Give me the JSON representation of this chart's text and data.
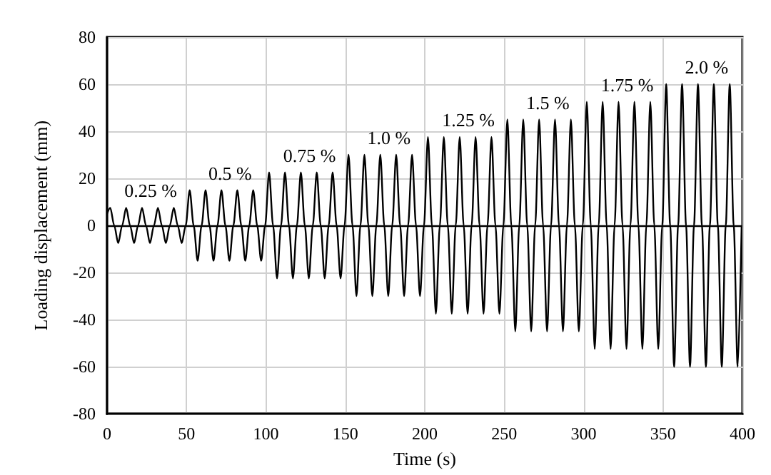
{
  "chart_data": {
    "type": "line",
    "xlabel": "Time (s)",
    "ylabel": "Loading displacement (mm)",
    "x": [
      0,
      2,
      4.5,
      7,
      9.5,
      12,
      14.5,
      17,
      19.5,
      22,
      24.5,
      27,
      29.5,
      32,
      34.5,
      37,
      39.5,
      42,
      44.5,
      47,
      49.5,
      52,
      54.5,
      57,
      59.5,
      62,
      64.5,
      67,
      69.5,
      72,
      74.5,
      77,
      79.5,
      82,
      84.5,
      87,
      89.5,
      92,
      94.5,
      97,
      99.5,
      102,
      104.5,
      107,
      109.5,
      112,
      114.5,
      117,
      119.5,
      122,
      124.5,
      127,
      129.5,
      132,
      134.5,
      137,
      139.5,
      142,
      144.5,
      147,
      149.5,
      152,
      154.5,
      157,
      159.5,
      162,
      164.5,
      167,
      169.5,
      172,
      174.5,
      177,
      179.5,
      182,
      184.5,
      187,
      189.5,
      192,
      194.5,
      197,
      199.5,
      202,
      204.5,
      207,
      209.5,
      212,
      214.5,
      217,
      219.5,
      222,
      224.5,
      227,
      229.5,
      232,
      234.5,
      237,
      239.5,
      242,
      244.5,
      247,
      249.5,
      252,
      254.5,
      257,
      259.5,
      262,
      264.5,
      267,
      269.5,
      272,
      274.5,
      277,
      279.5,
      282,
      284.5,
      287,
      289.5,
      292,
      294.5,
      297,
      299.5,
      302,
      304.5,
      307,
      309.5,
      312,
      314.5,
      317,
      319.5,
      322,
      324.5,
      327,
      329.5,
      332,
      334.5,
      337,
      339.5,
      342,
      344.5,
      347,
      349.5,
      352,
      354.5,
      357,
      359.5,
      362,
      364.5,
      367,
      369.5,
      372,
      374.5,
      377,
      379.5,
      382,
      384.5,
      387,
      389.5,
      392,
      394.5,
      397,
      399.5
    ],
    "series": [
      {
        "color": "#000000",
        "values": [
          5,
          7.5,
          0,
          -7.5,
          0,
          7.5,
          0,
          -7.5,
          0,
          7.5,
          0,
          -7.5,
          0,
          7.5,
          0,
          -7.5,
          0,
          7.5,
          0,
          -7.5,
          0,
          15,
          0,
          -15,
          0,
          15,
          0,
          -15,
          0,
          15,
          0,
          -15,
          0,
          15,
          0,
          -15,
          0,
          15,
          0,
          -15,
          0,
          22.5,
          0,
          -22.5,
          0,
          22.5,
          0,
          -22.5,
          0,
          22.5,
          0,
          -22.5,
          0,
          22.5,
          0,
          -22.5,
          0,
          22.5,
          0,
          -22.5,
          0,
          30,
          0,
          -30,
          0,
          30,
          0,
          -30,
          0,
          30,
          0,
          -30,
          0,
          30,
          0,
          -30,
          0,
          30,
          0,
          -30,
          0,
          37.5,
          0,
          -37.5,
          0,
          37.5,
          0,
          -37.5,
          0,
          37.5,
          0,
          -37.5,
          0,
          37.5,
          0,
          -37.5,
          0,
          37.5,
          0,
          -37.5,
          0,
          45,
          0,
          -45,
          0,
          45,
          0,
          -45,
          0,
          45,
          0,
          -45,
          0,
          45,
          0,
          -45,
          0,
          45,
          0,
          -45,
          0,
          52.5,
          0,
          -52.5,
          0,
          52.5,
          0,
          -52.5,
          0,
          52.5,
          0,
          -52.5,
          0,
          52.5,
          0,
          -52.5,
          0,
          52.5,
          0,
          -52.5,
          0,
          60,
          0,
          -60,
          0,
          60,
          0,
          -60,
          0,
          60,
          0,
          -60,
          0,
          60,
          0,
          -60,
          0,
          60,
          0,
          -60,
          0
        ]
      }
    ],
    "xlim": [
      0,
      400
    ],
    "xticks": [
      0,
      50,
      100,
      150,
      200,
      250,
      300,
      350,
      400
    ],
    "ylim": [
      -80,
      80
    ],
    "yticks": [
      -80,
      -60,
      -40,
      -20,
      0,
      20,
      40,
      60,
      80
    ],
    "grid": true,
    "marker": "none",
    "line_style": "solid",
    "ref_lines": [
      {
        "axis": "y",
        "value": 0,
        "color": "#000000"
      }
    ],
    "annotations": [
      "0.25 %",
      "0.5 %",
      "0.75 %",
      "1.0 %",
      "1.25 %",
      "1.5 %",
      "1.75 %",
      "2.0 %"
    ]
  }
}
